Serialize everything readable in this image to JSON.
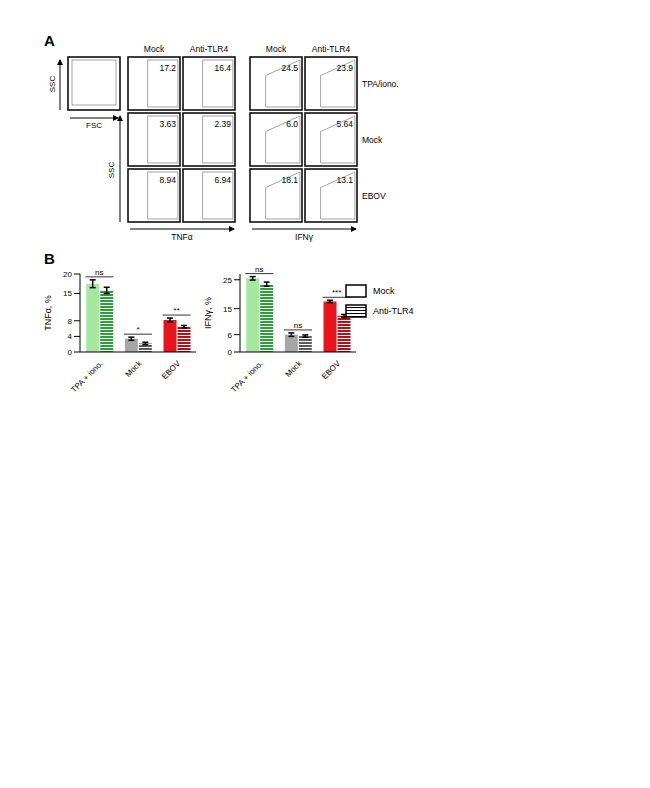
{
  "panel_labels": [
    "A",
    "B"
  ],
  "flow": {
    "gating": {
      "x_label": "FSC",
      "y_label": "SSC"
    },
    "columns": [
      "Mock",
      "Anti-TLR4",
      "Mock",
      "Anti-TLR4"
    ],
    "rows": [
      "TPA/iono.",
      "Mock",
      "EBOV"
    ],
    "y_label": "SSC",
    "x_labels": [
      "TNFα",
      "IFNγ"
    ],
    "gate_values": [
      [
        17.2,
        16.4,
        24.5,
        23.9
      ],
      [
        3.63,
        2.39,
        {
          "value": 6,
          "label": "6.0"
        },
        5.64
      ],
      [
        8.94,
        6.94,
        18.1,
        13.1
      ]
    ]
  },
  "chart_data": [
    {
      "type": "bar",
      "ylabel": "TNFα, %",
      "categories": [
        "TPA + iono.",
        "Mock",
        "EBOV"
      ],
      "ylim": [
        0,
        20
      ],
      "yticks": [
        0,
        4,
        8,
        15,
        20
      ],
      "grid": false,
      "significance": [
        "ns",
        "*",
        "**"
      ],
      "series": [
        {
          "name": "Mock",
          "colors": [
            "#a6e8a0",
            "#a6a6a6",
            "#e8141c"
          ],
          "values": [
            17.5,
            3.4,
            8.2
          ],
          "errors": [
            1.0,
            0.4,
            0.5
          ]
        },
        {
          "name": "Anti-TLR4",
          "colors": [
            "#2e9e3a",
            "#5a5a5a",
            "#b81018"
          ],
          "values": [
            15.8,
            2.2,
            6.5
          ],
          "errors": [
            0.8,
            0.3,
            0.3
          ]
        }
      ]
    },
    {
      "type": "bar",
      "ylabel": "IFNγ, %",
      "categories": [
        "TPA + iono.",
        "Mock",
        "EBOV"
      ],
      "ylim": [
        0,
        27
      ],
      "yticks": [
        0,
        6,
        15,
        25
      ],
      "grid": false,
      "legend": "right",
      "significance": [
        "ns",
        "ns",
        "***"
      ],
      "series": [
        {
          "name": "Mock",
          "colors": [
            "#a6e8a0",
            "#a6a6a6",
            "#e8141c"
          ],
          "values": [
            25.5,
            6.0,
            17.5
          ],
          "errors": [
            0.6,
            0.6,
            0.4
          ]
        },
        {
          "name": "Anti-TLR4",
          "colors": [
            "#2e9e3a",
            "#5a5a5a",
            "#b81018"
          ],
          "values": [
            23.5,
            5.5,
            12.5
          ],
          "errors": [
            0.7,
            0.4,
            0.5
          ]
        }
      ]
    }
  ]
}
